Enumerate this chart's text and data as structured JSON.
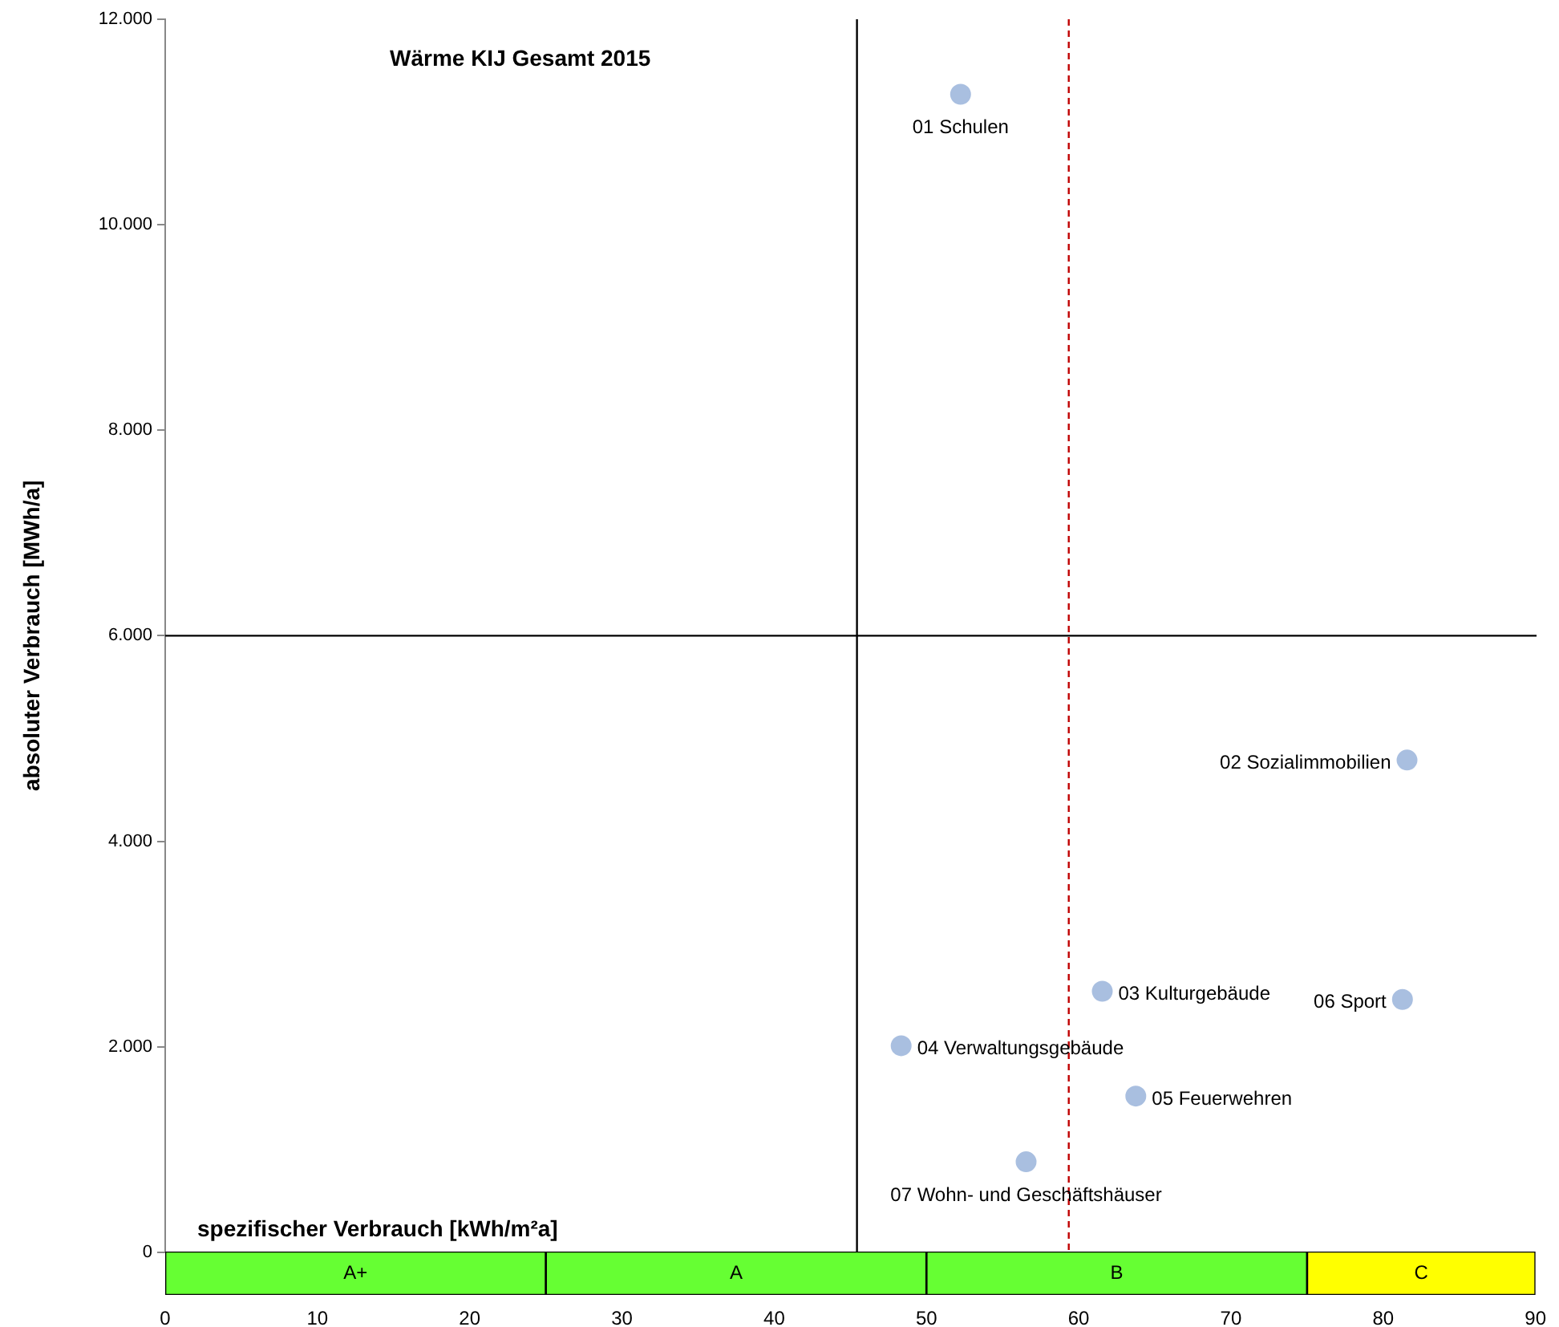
{
  "chart_data": [
    {
      "type": "scatter",
      "title": "Wärme KIJ Gesamt 2015",
      "xlabel": "spezifischer Verbrauch [kWh/m²a]",
      "ylabel": "absoluter Verbrauch [MWh/a]",
      "x": [
        52.2,
        81.5,
        61.5,
        48.3,
        63.7,
        81.2,
        56.5
      ],
      "series": [
        {
          "color": "#a9bfe0",
          "values": [
            11270,
            4790,
            2540,
            2010,
            1520,
            2460,
            880
          ]
        }
      ],
      "marker": "circle",
      "grid": false,
      "legend": false,
      "tick_labels": "y",
      "xlim": [
        0,
        90
      ],
      "xticks": [
        0,
        10,
        20,
        30,
        40,
        50,
        60,
        70,
        80,
        90
      ],
      "ylim": [
        0,
        12000
      ],
      "yticks": [
        0,
        {
          "value": 2000,
          "label": "2.000"
        },
        {
          "value": 4000,
          "label": "4.000"
        },
        {
          "value": 6000,
          "label": "6.000"
        },
        {
          "value": 8000,
          "label": "8.000"
        },
        {
          "value": 10000,
          "label": "10.000"
        },
        {
          "value": 12000,
          "label": "12.000"
        }
      ],
      "ref_lines": [
        {
          "axis": "x",
          "value": 45.4,
          "color": "#000000",
          "line_style": "solid"
        },
        {
          "axis": "x",
          "value": 59.3,
          "color": "#c00000",
          "line_style": "dashed"
        },
        {
          "axis": "y",
          "value": 6000,
          "color": "#000000",
          "line_style": "solid"
        }
      ],
      "annotations": [
        {
          "text": "01 Schulen",
          "x": 52.2,
          "y": 11270
        },
        {
          "text": "02 Sozialimmobilien",
          "x": 81.5,
          "y": 4790
        },
        {
          "text": "03 Kulturgebäude",
          "x": 61.5,
          "y": 2540
        },
        {
          "text": "04 Verwaltungsgebäude",
          "x": 48.3,
          "y": 2010
        },
        {
          "text": "05 Feuerwehren",
          "x": 63.7,
          "y": 1520
        },
        {
          "text": "06 Sport",
          "x": 81.2,
          "y": 2460
        },
        {
          "text": "07 Wohn- und Geschäftshäuser",
          "x": 56.5,
          "y": 880
        }
      ]
    },
    {
      "type": "bar",
      "orientation": "horizontal",
      "stacked": true,
      "categories": [
        null
      ],
      "series": [
        {
          "name": "A+",
          "color": "#66ff33",
          "values": [
            25
          ]
        },
        {
          "name": "A",
          "color": "#66ff33",
          "values": [
            25
          ]
        },
        {
          "name": "B",
          "color": "#66ff33",
          "values": [
            25
          ]
        },
        {
          "name": "C",
          "color": "#ffff00",
          "values": [
            15
          ]
        }
      ],
      "legend": false,
      "grid": false,
      "tick_labels": "x",
      "xlim": [
        0,
        90
      ],
      "xticks": [
        0,
        10,
        20,
        30,
        40,
        50,
        60,
        70,
        80,
        90
      ]
    }
  ]
}
